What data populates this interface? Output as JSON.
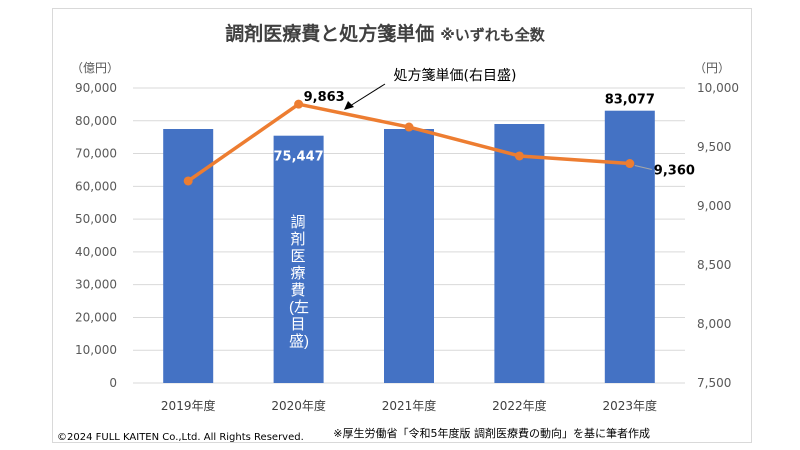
{
  "chart_data": {
    "type": "bar+line",
    "title": "調剤医療費と処方箋単価",
    "title_note": "※いずれも全数",
    "categories": [
      "2019年度",
      "2020年度",
      "2021年度",
      "2022年度",
      "2023年度"
    ],
    "series": [
      {
        "name": "調剤医療費(左目盛)",
        "type": "bar",
        "axis": "left",
        "color": "#4472c4",
        "values": [
          77490,
          75447,
          77490,
          79017,
          83077
        ],
        "data_labels": [
          "",
          "75,447",
          "",
          "",
          "83,077"
        ]
      },
      {
        "name": "処方箋単価(右目盛)",
        "type": "line",
        "axis": "right",
        "color": "#ed7d31",
        "values": [
          9212,
          9863,
          9669,
          9424,
          9360
        ],
        "data_labels": [
          "",
          "9,863",
          "",
          "",
          "9,360"
        ]
      }
    ],
    "left_axis": {
      "unit": "（億円）",
      "ylim": [
        0,
        90000
      ],
      "ticks": [
        "0",
        "10,000",
        "20,000",
        "30,000",
        "40,000",
        "50,000",
        "60,000",
        "70,000",
        "80,000",
        "90,000"
      ]
    },
    "right_axis": {
      "unit": "（円）",
      "ylim": [
        7500,
        10000
      ],
      "ticks": [
        "7,500",
        "8,000",
        "8,500",
        "9,000",
        "9,500",
        "10,000"
      ]
    },
    "grid": true,
    "annotations": {
      "line_label": "処方箋単価(右目盛)",
      "bar_label": "調剤医療費(左目盛)"
    }
  },
  "footer": {
    "copyright": "©2024 FULL KAITEN Co.,Ltd. All Rights Reserved.",
    "source": "※厚生労働省「令和5年度版 調剤医療費の動向」を基に筆者作成"
  }
}
